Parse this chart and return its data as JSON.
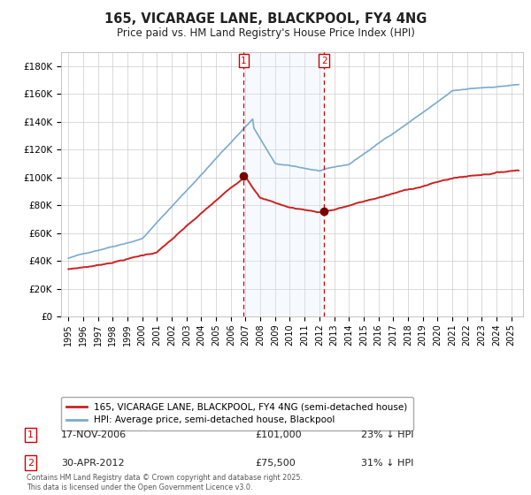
{
  "title": "165, VICARAGE LANE, BLACKPOOL, FY4 4NG",
  "subtitle": "Price paid vs. HM Land Registry's House Price Index (HPI)",
  "ylim": [
    0,
    190000
  ],
  "yticks": [
    0,
    20000,
    40000,
    60000,
    80000,
    100000,
    120000,
    140000,
    160000,
    180000
  ],
  "ytick_labels": [
    "£0",
    "£20K",
    "£40K",
    "£60K",
    "£80K",
    "£100K",
    "£120K",
    "£140K",
    "£160K",
    "£180K"
  ],
  "hpi_color": "#7aaad0",
  "price_color": "#cc2222",
  "marker_color": "#7a0000",
  "vline_color": "#cc0000",
  "shade_color": "#ddeeff",
  "background_color": "#ffffff",
  "grid_color": "#cccccc",
  "annotation1_date": "17-NOV-2006",
  "annotation1_price": "£101,000",
  "annotation1_hpi": "23% ↓ HPI",
  "annotation2_date": "30-APR-2012",
  "annotation2_price": "£75,500",
  "annotation2_hpi": "31% ↓ HPI",
  "legend1": "165, VICARAGE LANE, BLACKPOOL, FY4 4NG (semi-detached house)",
  "legend2": "HPI: Average price, semi-detached house, Blackpool",
  "footnote": "Contains HM Land Registry data © Crown copyright and database right 2025.\nThis data is licensed under the Open Government Licence v3.0.",
  "sale1_x": 2006.88,
  "sale1_y": 101000,
  "sale2_x": 2012.33,
  "sale2_y": 75500,
  "shade_x1": 2006.88,
  "shade_x2": 2012.33,
  "xlim": [
    1994.5,
    2025.8
  ],
  "title_fontsize": 10.5,
  "subtitle_fontsize": 8.5
}
